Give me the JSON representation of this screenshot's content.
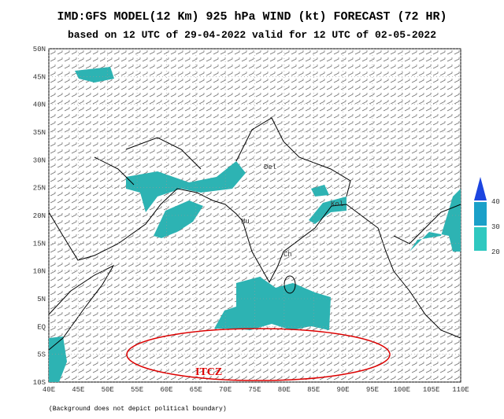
{
  "header": {
    "title": "IMD:GFS MODEL(12 Km) 925 hPa WIND (kt) FORECAST (72 HR)",
    "subtitle": "based on 12 UTC of 29-04-2022 valid for 12 UTC of 02-05-2022"
  },
  "map": {
    "lat_labels": [
      "50N",
      "45N",
      "40N",
      "35N",
      "30N",
      "25N",
      "20N",
      "15N",
      "10N",
      "5N",
      "EQ",
      "5S",
      "10S"
    ],
    "lon_labels": [
      "40E",
      "45E",
      "50E",
      "55E",
      "60E",
      "65E",
      "70E",
      "75E",
      "80E",
      "85E",
      "90E",
      "95E",
      "100E",
      "105E",
      "110E"
    ],
    "places": [
      "Del",
      "Kol",
      "Mu",
      "Ch"
    ],
    "annotation": "ITCZ"
  },
  "legend": {
    "levels": [
      40,
      30,
      20
    ]
  },
  "footnote": "(Background does not depict political boundary)"
}
